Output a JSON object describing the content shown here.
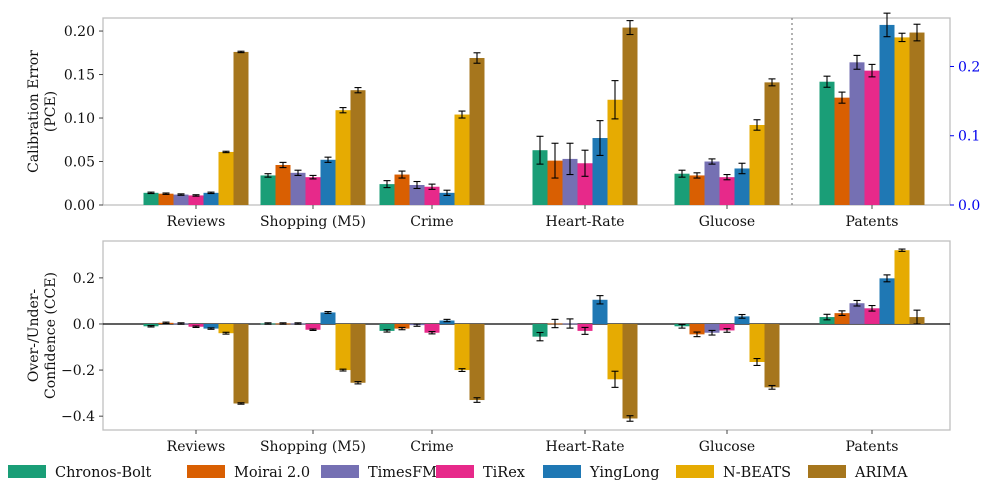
{
  "chart_data": [
    {
      "type": "bar",
      "ylabel": "Calibration Error (PCE)",
      "ylabel_lines": [
        "Calibration Error",
        "(PCE)"
      ],
      "ylim": [
        0,
        0.215
      ],
      "yticks": [
        0.0,
        0.05,
        0.1,
        0.15,
        0.2
      ],
      "ytick_labels": [
        "0.00",
        "0.05",
        "0.10",
        "0.15",
        "0.20"
      ],
      "grid": false,
      "categories": [
        "Reviews",
        "Shopping (M5)",
        "Crime",
        "Heart-Rate",
        "Glucose",
        "Patents"
      ],
      "secondary_axis": {
        "applies_to": "Patents",
        "ylim": [
          0,
          0.27
        ],
        "yticks": [
          0.0,
          0.1,
          0.2
        ],
        "ytick_labels": [
          "0.0",
          "0.1",
          "0.2"
        ],
        "color": "#0000ee"
      },
      "series": [
        {
          "name": "Chronos-Bolt",
          "values": [
            0.014,
            0.034,
            0.024,
            0.063,
            0.036,
            0.178
          ],
          "errors": [
            0.0008,
            0.002,
            0.004,
            0.016,
            0.004,
            0.008
          ]
        },
        {
          "name": "Moirai 2.0",
          "values": [
            0.013,
            0.046,
            0.035,
            0.051,
            0.034,
            0.155
          ],
          "errors": [
            0.0008,
            0.003,
            0.004,
            0.02,
            0.003,
            0.008
          ]
        },
        {
          "name": "TimesFM",
          "values": [
            0.012,
            0.037,
            0.023,
            0.053,
            0.05,
            0.206
          ],
          "errors": [
            0.0008,
            0.003,
            0.004,
            0.018,
            0.003,
            0.01
          ]
        },
        {
          "name": "TiRex",
          "values": [
            0.011,
            0.032,
            0.021,
            0.048,
            0.032,
            0.194
          ],
          "errors": [
            0.0008,
            0.002,
            0.003,
            0.015,
            0.003,
            0.009
          ]
        },
        {
          "name": "YingLong",
          "values": [
            0.014,
            0.052,
            0.014,
            0.077,
            0.042,
            0.26
          ],
          "errors": [
            0.0008,
            0.003,
            0.003,
            0.02,
            0.006,
            0.017
          ]
        },
        {
          "name": "N-BEATS",
          "values": [
            0.061,
            0.109,
            0.104,
            0.121,
            0.092,
            0.242
          ],
          "errors": [
            0.0008,
            0.003,
            0.004,
            0.022,
            0.006,
            0.006
          ]
        },
        {
          "name": "ARIMA",
          "values": [
            0.176,
            0.132,
            0.169,
            0.204,
            0.141,
            0.249
          ],
          "errors": [
            0.0008,
            0.003,
            0.006,
            0.008,
            0.004,
            0.012
          ]
        }
      ]
    },
    {
      "type": "bar",
      "ylabel": "Over-/Under-Confidence (CCE)",
      "ylabel_lines": [
        "Over-/Under-",
        "Confidence (CCE)"
      ],
      "ylim": [
        -0.46,
        0.36
      ],
      "yticks": [
        -0.4,
        -0.2,
        0.0,
        0.2
      ],
      "ytick_labels": [
        "−0.4",
        "−0.2",
        "0.0",
        "0.2"
      ],
      "grid": false,
      "zero_line": true,
      "categories": [
        "Reviews",
        "Shopping (M5)",
        "Crime",
        "Heart-Rate",
        "Glucose",
        "Patents"
      ],
      "series": [
        {
          "name": "Chronos-Bolt",
          "values": [
            -0.01,
            0.002,
            -0.03,
            -0.055,
            -0.01,
            0.03
          ],
          "errors": [
            0.003,
            0.003,
            0.005,
            0.018,
            0.008,
            0.012
          ]
        },
        {
          "name": "Moirai 2.0",
          "values": [
            0.005,
            0.002,
            -0.02,
            0.002,
            -0.045,
            0.047
          ],
          "errors": [
            0.003,
            0.003,
            0.005,
            0.018,
            0.01,
            0.01
          ]
        },
        {
          "name": "TimesFM",
          "values": [
            0.002,
            0.002,
            -0.005,
            0.002,
            -0.038,
            0.09
          ],
          "errors": [
            0.003,
            0.003,
            0.005,
            0.02,
            0.01,
            0.012
          ]
        },
        {
          "name": "TiRex",
          "values": [
            -0.012,
            -0.025,
            -0.038,
            -0.03,
            -0.028,
            0.068
          ],
          "errors": [
            0.003,
            0.003,
            0.005,
            0.015,
            0.008,
            0.012
          ]
        },
        {
          "name": "YingLong",
          "values": [
            -0.02,
            0.05,
            0.015,
            0.105,
            0.033,
            0.198
          ],
          "errors": [
            0.003,
            0.004,
            0.005,
            0.018,
            0.008,
            0.015
          ]
        },
        {
          "name": "N-BEATS",
          "values": [
            -0.04,
            -0.2,
            -0.2,
            -0.24,
            -0.165,
            0.32
          ],
          "errors": [
            0.004,
            0.004,
            0.006,
            0.035,
            0.015,
            0.005
          ]
        },
        {
          "name": "ARIMA",
          "values": [
            -0.345,
            -0.255,
            -0.33,
            -0.41,
            -0.275,
            0.03
          ],
          "errors": [
            0.003,
            0.005,
            0.01,
            0.012,
            0.008,
            0.03
          ]
        }
      ]
    }
  ],
  "legend": {
    "placement": "bottom",
    "items": [
      {
        "name": "Chronos-Bolt",
        "color": "#1a9e77"
      },
      {
        "name": "Moirai 2.0",
        "color": "#d95f02"
      },
      {
        "name": "TimesFM",
        "color": "#7570b3"
      },
      {
        "name": "TiRex",
        "color": "#e7298a"
      },
      {
        "name": "YingLong",
        "color": "#1f78b4"
      },
      {
        "name": "N-BEATS",
        "color": "#e6ab02"
      },
      {
        "name": "ARIMA",
        "color": "#a6761d"
      }
    ]
  }
}
